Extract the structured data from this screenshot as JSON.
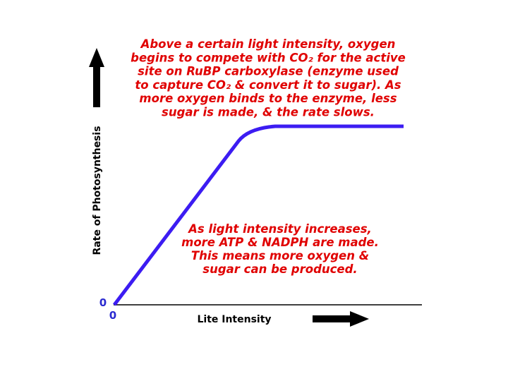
{
  "top_annotation": {
    "lines": [
      "Above a certain light intensity, oxygen",
      "begins to compete with CO₂ for the active",
      "site on RuBP carboxylase (enzyme used",
      "to capture CO₂ & convert it to sugar).  As",
      "more oxygen binds to the enzyme, less",
      "sugar is made, & the rate slows."
    ]
  },
  "bottom_annotation": {
    "lines": [
      "As light intensity increases,",
      "more ATP & NADPH are made.",
      "This means more oxygen &",
      "sugar can be produced."
    ]
  },
  "y_axis": {
    "label": "Rate of Photosynthesis",
    "origin": "0"
  },
  "x_axis": {
    "label": "Lite Intensity",
    "origin": "0"
  }
}
